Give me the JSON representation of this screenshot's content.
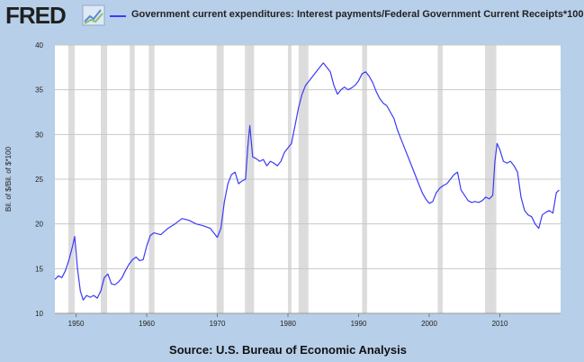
{
  "header": {
    "logo": "FRED",
    "logo_icon": "line-chart-icon"
  },
  "footer": {
    "source": "Source: U.S. Bureau of Economic Analysis"
  },
  "colors": {
    "background": "#b7cfe9",
    "plot_background": "#ffffff",
    "series": "#3b3bf5",
    "recession": "#dcdcdc",
    "grid": "#c8c8c8"
  },
  "chart_data": {
    "type": "line",
    "title": "",
    "xlabel": "",
    "ylabel": "Bil. of $/Bil. of $*100",
    "xlim": [
      1947,
      2018.6
    ],
    "ylim": [
      10,
      40
    ],
    "x_ticks": [
      1950,
      1960,
      1970,
      1980,
      1990,
      2000,
      2010
    ],
    "y_ticks": [
      10,
      15,
      20,
      25,
      30,
      35,
      40
    ],
    "grid": "horizontal",
    "legend": "top",
    "recessions": [
      [
        1948.9,
        1949.8
      ],
      [
        1953.5,
        1954.4
      ],
      [
        1957.6,
        1958.3
      ],
      [
        1960.3,
        1961.1
      ],
      [
        1969.9,
        1970.9
      ],
      [
        1973.9,
        1975.2
      ],
      [
        1980.0,
        1980.5
      ],
      [
        1981.5,
        1982.9
      ],
      [
        1990.5,
        1991.2
      ],
      [
        2001.2,
        2001.9
      ],
      [
        2007.9,
        2009.5
      ]
    ],
    "series": [
      {
        "name": "Government current expenditures: Interest payments/Federal Government Current Receipts*100",
        "x": [
          1947,
          1947.5,
          1948,
          1948.5,
          1949,
          1949.5,
          1949.8,
          1950.2,
          1950.6,
          1951,
          1951.5,
          1952,
          1952.5,
          1953,
          1953.5,
          1954,
          1954.5,
          1955,
          1955.5,
          1956,
          1956.5,
          1957,
          1957.5,
          1958,
          1958.5,
          1959,
          1959.5,
          1960,
          1960.5,
          1961,
          1962,
          1963,
          1964,
          1965,
          1966,
          1967,
          1968,
          1969,
          1970,
          1970.5,
          1971,
          1971.5,
          1972,
          1972.5,
          1973,
          1973.5,
          1974,
          1974.3,
          1974.6,
          1975,
          1975.5,
          1976,
          1976.5,
          1977,
          1977.5,
          1978,
          1978.5,
          1979,
          1979.5,
          1980,
          1980.5,
          1981,
          1981.5,
          1982,
          1982.5,
          1983,
          1983.5,
          1984,
          1984.5,
          1985,
          1985.5,
          1986,
          1986.5,
          1987,
          1987.5,
          1988,
          1988.5,
          1989,
          1989.5,
          1990,
          1990.5,
          1991,
          1991.5,
          1992,
          1992.5,
          1993,
          1993.5,
          1994,
          1994.5,
          1995,
          1995.5,
          1996,
          1996.5,
          1997,
          1997.5,
          1998,
          1998.5,
          1999,
          1999.5,
          2000,
          2000.5,
          2001,
          2001.5,
          2002,
          2002.5,
          2003,
          2003.5,
          2004,
          2004.5,
          2005,
          2005.5,
          2006,
          2006.5,
          2007,
          2007.5,
          2008,
          2008.5,
          2009,
          2009.3,
          2009.6,
          2010,
          2010.5,
          2011,
          2011.5,
          2012,
          2012.5,
          2013,
          2013.5,
          2014,
          2014.5,
          2015,
          2015.5,
          2016,
          2016.5,
          2017,
          2017.5,
          2018,
          2018.4
        ],
        "values": [
          13.8,
          14.2,
          14.0,
          14.8,
          16.0,
          17.5,
          18.6,
          15.0,
          12.5,
          11.5,
          12.0,
          11.8,
          12.0,
          11.7,
          12.5,
          14.0,
          14.4,
          13.3,
          13.2,
          13.5,
          14.0,
          14.8,
          15.5,
          16.0,
          16.3,
          15.9,
          16.0,
          17.5,
          18.7,
          19.0,
          18.8,
          19.5,
          20.0,
          20.6,
          20.4,
          20.0,
          19.8,
          19.5,
          18.5,
          19.5,
          22.5,
          24.5,
          25.5,
          25.8,
          24.5,
          24.8,
          25.0,
          28.5,
          31.0,
          27.5,
          27.3,
          27.0,
          27.2,
          26.5,
          27.0,
          26.8,
          26.5,
          27.0,
          28.0,
          28.5,
          29.0,
          31.0,
          33.0,
          34.5,
          35.5,
          36.0,
          36.5,
          37.0,
          37.5,
          38.0,
          37.5,
          37.0,
          35.5,
          34.5,
          35.0,
          35.3,
          35.0,
          35.2,
          35.5,
          36.0,
          36.8,
          37.0,
          36.5,
          35.8,
          34.8,
          34.0,
          33.5,
          33.2,
          32.5,
          31.8,
          30.5,
          29.5,
          28.5,
          27.5,
          26.5,
          25.5,
          24.5,
          23.5,
          22.8,
          22.3,
          22.5,
          23.5,
          24.0,
          24.3,
          24.5,
          25.0,
          25.5,
          25.8,
          23.8,
          23.2,
          22.6,
          22.4,
          22.5,
          22.4,
          22.6,
          23.0,
          22.8,
          23.2,
          27.0,
          29.0,
          28.3,
          27.0,
          26.8,
          27.0,
          26.5,
          25.8,
          23.0,
          21.5,
          21.0,
          20.8,
          20.0,
          19.5,
          21.0,
          21.3,
          21.5,
          21.2,
          23.5,
          23.8
        ]
      }
    ]
  }
}
